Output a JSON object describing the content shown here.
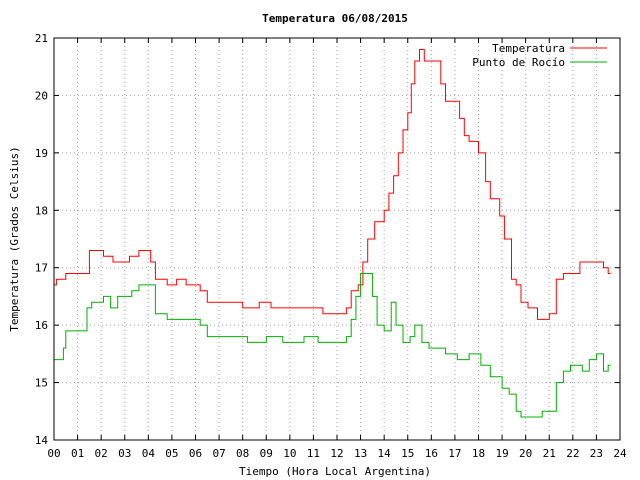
{
  "chart_data": {
    "type": "line",
    "title": "Temperatura 06/08/2015",
    "xlabel": "Tiempo (Hora Local Argentina)",
    "ylabel": "Temperatura (Grados Celsius)",
    "xlim": [
      0,
      24
    ],
    "ylim": [
      14,
      21
    ],
    "x_ticks": [
      "00",
      "01",
      "02",
      "03",
      "04",
      "05",
      "06",
      "07",
      "08",
      "09",
      "10",
      "11",
      "12",
      "13",
      "14",
      "15",
      "16",
      "17",
      "18",
      "19",
      "20",
      "21",
      "22",
      "23",
      "24"
    ],
    "y_ticks": [
      "14",
      "15",
      "16",
      "17",
      "18",
      "19",
      "20",
      "21"
    ],
    "grid": true,
    "legend_position": "top-right",
    "series": [
      {
        "name": "Temperatura",
        "color": "#ff0000",
        "points": [
          [
            0.0,
            16.7
          ],
          [
            0.1,
            16.8
          ],
          [
            0.5,
            16.9
          ],
          [
            1.5,
            17.3
          ],
          [
            2.1,
            17.2
          ],
          [
            2.5,
            17.1
          ],
          [
            3.2,
            17.2
          ],
          [
            3.6,
            17.3
          ],
          [
            4.1,
            17.1
          ],
          [
            4.3,
            16.8
          ],
          [
            4.8,
            16.7
          ],
          [
            5.2,
            16.8
          ],
          [
            5.6,
            16.7
          ],
          [
            6.2,
            16.6
          ],
          [
            6.5,
            16.4
          ],
          [
            7.5,
            16.4
          ],
          [
            8.0,
            16.3
          ],
          [
            8.7,
            16.4
          ],
          [
            9.2,
            16.3
          ],
          [
            10.5,
            16.3
          ],
          [
            11.4,
            16.2
          ],
          [
            12.0,
            16.2
          ],
          [
            12.4,
            16.3
          ],
          [
            12.6,
            16.6
          ],
          [
            12.9,
            16.7
          ],
          [
            13.1,
            17.1
          ],
          [
            13.3,
            17.5
          ],
          [
            13.6,
            17.8
          ],
          [
            14.0,
            18.0
          ],
          [
            14.2,
            18.3
          ],
          [
            14.4,
            18.6
          ],
          [
            14.6,
            19.0
          ],
          [
            14.8,
            19.4
          ],
          [
            15.0,
            19.7
          ],
          [
            15.15,
            20.2
          ],
          [
            15.3,
            20.6
          ],
          [
            15.5,
            20.8
          ],
          [
            15.7,
            20.6
          ],
          [
            16.2,
            20.6
          ],
          [
            16.4,
            20.2
          ],
          [
            16.6,
            19.9
          ],
          [
            17.2,
            19.6
          ],
          [
            17.4,
            19.3
          ],
          [
            17.6,
            19.2
          ],
          [
            18.0,
            19.0
          ],
          [
            18.3,
            18.5
          ],
          [
            18.5,
            18.2
          ],
          [
            18.9,
            17.9
          ],
          [
            19.1,
            17.5
          ],
          [
            19.4,
            16.8
          ],
          [
            19.6,
            16.7
          ],
          [
            19.8,
            16.4
          ],
          [
            20.1,
            16.3
          ],
          [
            20.5,
            16.1
          ],
          [
            21.0,
            16.2
          ],
          [
            21.3,
            16.8
          ],
          [
            21.6,
            16.9
          ],
          [
            22.0,
            16.9
          ],
          [
            22.3,
            17.1
          ],
          [
            23.3,
            17.0
          ],
          [
            23.5,
            16.9
          ],
          [
            23.6,
            16.9
          ]
        ]
      },
      {
        "name": "Punto de Rocío",
        "color": "#00b000",
        "points": [
          [
            0.0,
            15.4
          ],
          [
            0.4,
            15.6
          ],
          [
            0.5,
            15.9
          ],
          [
            1.2,
            15.9
          ],
          [
            1.4,
            16.3
          ],
          [
            1.6,
            16.4
          ],
          [
            2.1,
            16.5
          ],
          [
            2.4,
            16.3
          ],
          [
            2.7,
            16.5
          ],
          [
            3.3,
            16.6
          ],
          [
            3.6,
            16.7
          ],
          [
            4.0,
            16.7
          ],
          [
            4.3,
            16.2
          ],
          [
            4.8,
            16.1
          ],
          [
            6.2,
            16.0
          ],
          [
            6.5,
            15.8
          ],
          [
            7.0,
            15.8
          ],
          [
            7.6,
            15.8
          ],
          [
            8.2,
            15.7
          ],
          [
            9.0,
            15.8
          ],
          [
            9.7,
            15.7
          ],
          [
            10.6,
            15.8
          ],
          [
            11.2,
            15.7
          ],
          [
            11.9,
            15.7
          ],
          [
            12.4,
            15.8
          ],
          [
            12.6,
            16.1
          ],
          [
            12.8,
            16.5
          ],
          [
            13.0,
            16.9
          ],
          [
            13.2,
            16.9
          ],
          [
            13.5,
            16.5
          ],
          [
            13.7,
            16.0
          ],
          [
            14.0,
            15.9
          ],
          [
            14.3,
            16.4
          ],
          [
            14.5,
            16.0
          ],
          [
            14.8,
            15.7
          ],
          [
            15.1,
            15.8
          ],
          [
            15.3,
            16.0
          ],
          [
            15.6,
            15.7
          ],
          [
            15.9,
            15.6
          ],
          [
            16.2,
            15.6
          ],
          [
            16.6,
            15.5
          ],
          [
            17.1,
            15.4
          ],
          [
            17.6,
            15.5
          ],
          [
            18.1,
            15.3
          ],
          [
            18.5,
            15.1
          ],
          [
            19.0,
            14.9
          ],
          [
            19.3,
            14.8
          ],
          [
            19.6,
            14.5
          ],
          [
            19.8,
            14.4
          ],
          [
            20.0,
            14.4
          ],
          [
            20.4,
            14.4
          ],
          [
            20.7,
            14.5
          ],
          [
            21.0,
            14.5
          ],
          [
            21.3,
            15.0
          ],
          [
            21.6,
            15.2
          ],
          [
            21.9,
            15.3
          ],
          [
            22.1,
            15.3
          ],
          [
            22.4,
            15.2
          ],
          [
            22.7,
            15.4
          ],
          [
            23.0,
            15.5
          ],
          [
            23.3,
            15.2
          ],
          [
            23.5,
            15.3
          ],
          [
            23.6,
            15.3
          ]
        ]
      }
    ]
  }
}
